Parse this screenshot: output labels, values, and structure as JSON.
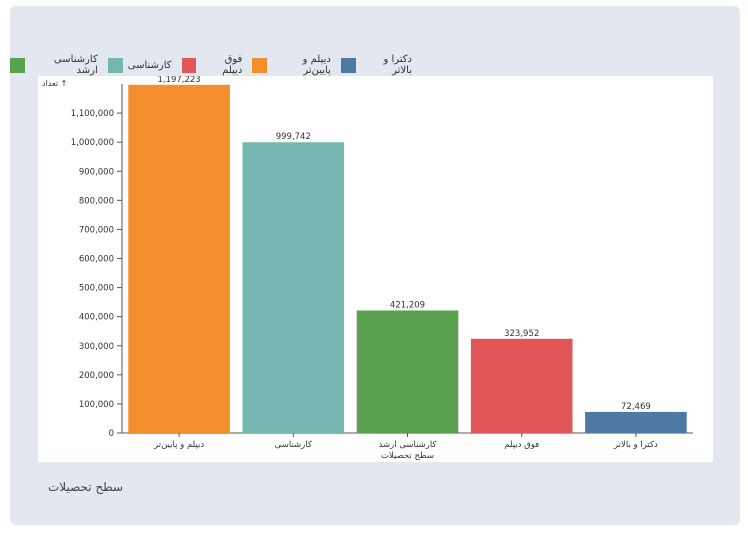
{
  "footer_label": "سطح تحصیلات",
  "chart_data": {
    "type": "bar",
    "ylabel": "تعداد ↑",
    "xlabel": "سطح تحصیلات",
    "ylim": [
      0,
      1200000
    ],
    "yticks": [
      "0",
      "100,000",
      "200,000",
      "300,000",
      "400,000",
      "500,000",
      "600,000",
      "700,000",
      "800,000",
      "900,000",
      "1,000,000",
      "1,100,000"
    ],
    "categories": [
      "دیپلم و پایین‌تر",
      "کارشناسی",
      "کارشناسی ارشد",
      "فوق دیپلم",
      "دکترا و بالاتر"
    ],
    "values": [
      1197223,
      999742,
      421209,
      323952,
      72469
    ],
    "value_labels": [
      "1,197,223",
      "999,742",
      "421,209",
      "323,952",
      "72,469"
    ],
    "colors": [
      "#f28e2c",
      "#76b7b2",
      "#59a14f",
      "#e15759",
      "#4e79a7"
    ],
    "legend": [
      {
        "name": "دکترا و بالاتر",
        "color": "#4e79a7"
      },
      {
        "name": "دیپلم و پایین‌تر",
        "color": "#f28e2c"
      },
      {
        "name": "فوق دیپلم",
        "color": "#e15759"
      },
      {
        "name": "کارشناسی",
        "color": "#76b7b2"
      },
      {
        "name": "کارشناسی ارشد",
        "color": "#59a14f"
      }
    ],
    "legend_position": "top-left",
    "grid": false
  }
}
